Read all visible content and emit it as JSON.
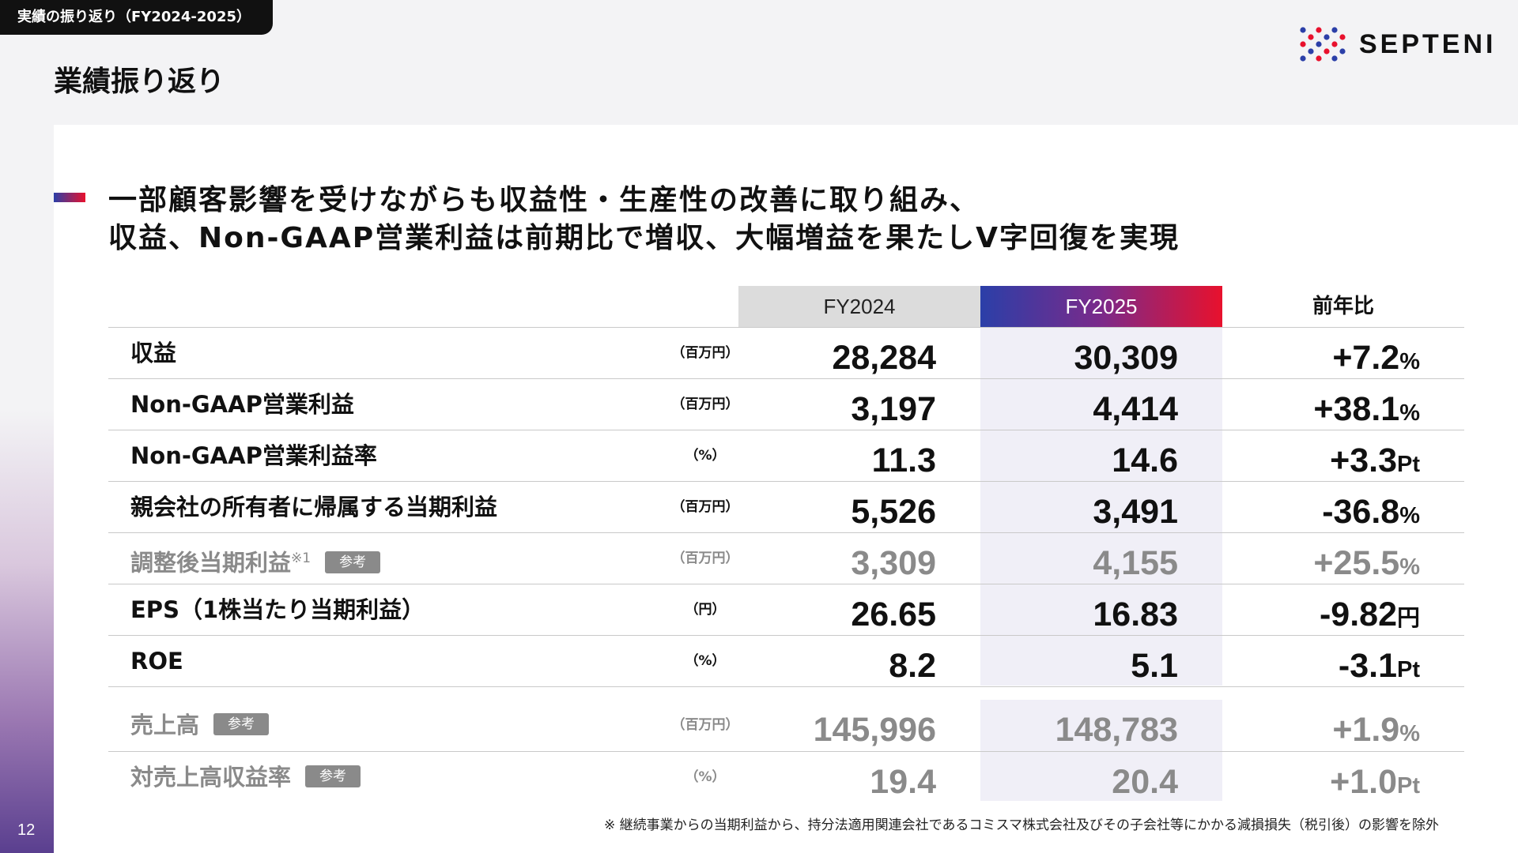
{
  "section_tag": "実績の振り返り（FY2024-2025）",
  "page_title": "業績振り返り",
  "logo": {
    "text": "SEPTENI",
    "colors": [
      "#2b3fa8",
      "#e8112d"
    ]
  },
  "headline": {
    "line1": "一部顧客影響を受けながらも収益性・生産性の改善に取り組み、",
    "line2": "収益、Non-GAAP営業利益は前期比で増収、大幅増益を果たしV字回復を実現"
  },
  "table": {
    "headers": {
      "fy2024": "FY2024",
      "fy2025": "FY2025",
      "yoy": "前年比"
    },
    "rows": [
      {
        "label": "収益",
        "unit": "（百万円）",
        "fy2024": "28,284",
        "fy2025": "30,309",
        "yoy": "+7.2",
        "yoy_suffix": "%"
      },
      {
        "label": "Non-GAAP営業利益",
        "unit": "（百万円）",
        "fy2024": "3,197",
        "fy2025": "4,414",
        "yoy": "+38.1",
        "yoy_suffix": "%"
      },
      {
        "label": "Non-GAAP営業利益率",
        "unit": "（%）",
        "fy2024": "11.3",
        "fy2025": "14.6",
        "yoy": "+3.3",
        "yoy_suffix": "Pt"
      },
      {
        "label": "親会社の所有者に帰属する当期利益",
        "unit": "（百万円）",
        "fy2024": "5,526",
        "fy2025": "3,491",
        "yoy": "-36.8",
        "yoy_suffix": "%"
      },
      {
        "label": "調整後当期利益",
        "sup": "※1",
        "badge": "参考",
        "unit": "（百万円）",
        "fy2024": "3,309",
        "fy2025": "4,155",
        "yoy": "+25.5",
        "yoy_suffix": "%"
      },
      {
        "label": "EPS（1株当たり当期利益）",
        "unit": "（円）",
        "fy2024": "26.65",
        "fy2025": "16.83",
        "yoy": "-9.82",
        "yoy_suffix": "円"
      },
      {
        "label": "ROE",
        "unit": "（%）",
        "fy2024": "8.2",
        "fy2025": "5.1",
        "yoy": "-3.1",
        "yoy_suffix": "Pt"
      },
      {
        "label": "売上高",
        "badge": "参考",
        "unit": "（百万円）",
        "fy2024": "145,996",
        "fy2025": "148,783",
        "yoy": "+1.9",
        "yoy_suffix": "%"
      },
      {
        "label": "対売上高収益率",
        "badge": "参考",
        "unit": "（%）",
        "fy2024": "19.4",
        "fy2025": "20.4",
        "yoy": "+1.0",
        "yoy_suffix": "Pt"
      }
    ]
  },
  "footnote": "※ 継続事業からの当期利益から、持分法適用関連会社であるコミスマ株式会社及びその子会社等にかかる減損損失（税引後）の影響を除外",
  "page_number": "12"
}
